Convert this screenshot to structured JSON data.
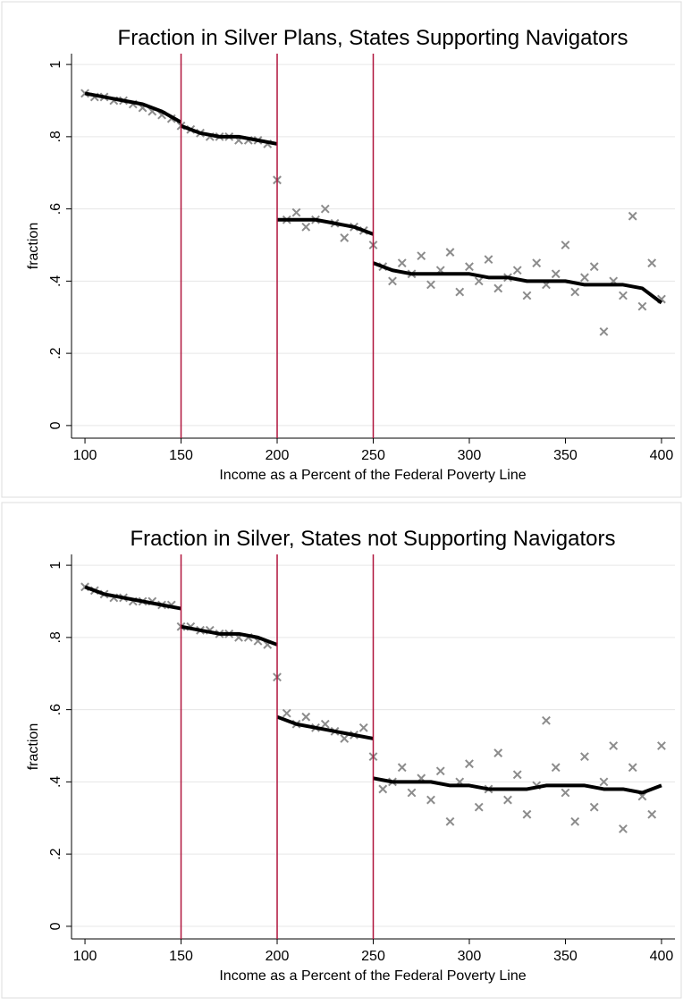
{
  "chart_data": [
    {
      "type": "scatter",
      "title": "Fraction in Silver Plans, States Supporting Navigators",
      "x_label": "Income as a Percent of the Federal Poverty Line",
      "y_label": "fraction",
      "xlim": [
        93,
        407
      ],
      "ylim": [
        -0.035,
        1.03
      ],
      "xticks": [
        100,
        150,
        200,
        250,
        300,
        350,
        400
      ],
      "yticks": [
        0,
        {
          "value": 0.2,
          "label": ".2"
        },
        {
          "value": 0.4,
          "label": ".4"
        },
        {
          "value": 0.6,
          "label": ".6"
        },
        {
          "value": 0.8,
          "label": ".8"
        },
        1
      ],
      "grid": true,
      "scatter": {
        "color": "#8c8c8c",
        "x": [
          100,
          105,
          110,
          115,
          120,
          125,
          130,
          135,
          140,
          145,
          150,
          155,
          160,
          165,
          170,
          175,
          180,
          185,
          190,
          195,
          200,
          205,
          210,
          215,
          220,
          225,
          230,
          235,
          240,
          245,
          250,
          255,
          260,
          265,
          270,
          275,
          280,
          285,
          290,
          295,
          300,
          305,
          310,
          315,
          320,
          325,
          330,
          335,
          340,
          345,
          350,
          355,
          360,
          365,
          370,
          375,
          380,
          385,
          390,
          395,
          400
        ],
        "values": [
          0.92,
          0.91,
          0.91,
          0.9,
          0.9,
          0.89,
          0.88,
          0.87,
          0.86,
          0.85,
          0.83,
          0.82,
          0.81,
          0.8,
          0.8,
          0.8,
          0.79,
          0.79,
          0.79,
          0.78,
          0.68,
          0.57,
          0.59,
          0.55,
          0.57,
          0.6,
          0.56,
          0.52,
          0.55,
          0.54,
          0.5,
          0.44,
          0.4,
          0.45,
          0.42,
          0.47,
          0.39,
          0.43,
          0.48,
          0.37,
          0.44,
          0.4,
          0.46,
          0.38,
          0.41,
          0.43,
          0.36,
          0.45,
          0.39,
          0.42,
          0.5,
          0.37,
          0.41,
          0.44,
          0.26,
          0.4,
          0.36,
          0.58,
          0.33,
          0.45,
          0.35
        ]
      },
      "fit": {
        "color": "#000000",
        "x": [
          100,
          110,
          120,
          130,
          140,
          150,
          150,
          150,
          160,
          170,
          180,
          190,
          200,
          200,
          200,
          210,
          220,
          230,
          240,
          250,
          250,
          250,
          260,
          270,
          280,
          290,
          300,
          310,
          320,
          330,
          340,
          350,
          360,
          370,
          380,
          390,
          400
        ],
        "values": [
          0.92,
          0.91,
          0.9,
          0.89,
          0.87,
          0.84,
          null,
          0.83,
          0.81,
          0.8,
          0.8,
          0.79,
          0.78,
          null,
          0.57,
          0.57,
          0.57,
          0.56,
          0.55,
          0.53,
          null,
          0.45,
          0.43,
          0.42,
          0.42,
          0.42,
          0.42,
          0.41,
          0.41,
          0.4,
          0.4,
          0.4,
          0.39,
          0.39,
          0.39,
          0.38,
          0.34
        ]
      },
      "vlines": {
        "color": "#b0143c",
        "values": [
          150,
          200,
          250
        ]
      }
    },
    {
      "type": "scatter",
      "title": "Fraction in Silver, States not Supporting Navigators",
      "x_label": "Income as a Percent of the Federal Poverty Line",
      "y_label": "fraction",
      "xlim": [
        93,
        407
      ],
      "ylim": [
        -0.035,
        1.03
      ],
      "xticks": [
        100,
        150,
        200,
        250,
        300,
        350,
        400
      ],
      "yticks": [
        0,
        {
          "value": 0.2,
          "label": ".2"
        },
        {
          "value": 0.4,
          "label": ".4"
        },
        {
          "value": 0.6,
          "label": ".6"
        },
        {
          "value": 0.8,
          "label": ".8"
        },
        1
      ],
      "grid": true,
      "scatter": {
        "color": "#8c8c8c",
        "x": [
          100,
          105,
          110,
          115,
          120,
          125,
          130,
          135,
          140,
          145,
          150,
          155,
          160,
          165,
          170,
          175,
          180,
          185,
          190,
          195,
          200,
          205,
          210,
          215,
          220,
          225,
          230,
          235,
          240,
          245,
          250,
          255,
          260,
          265,
          270,
          275,
          280,
          285,
          290,
          295,
          300,
          305,
          310,
          315,
          320,
          325,
          330,
          335,
          340,
          345,
          350,
          355,
          360,
          365,
          370,
          375,
          380,
          385,
          390,
          395,
          400
        ],
        "values": [
          0.94,
          0.93,
          0.92,
          0.91,
          0.91,
          0.9,
          0.9,
          0.9,
          0.89,
          0.89,
          0.83,
          0.83,
          0.82,
          0.82,
          0.81,
          0.81,
          0.8,
          0.8,
          0.79,
          0.78,
          0.69,
          0.59,
          0.56,
          0.58,
          0.55,
          0.56,
          0.54,
          0.52,
          0.53,
          0.55,
          0.47,
          0.38,
          0.4,
          0.44,
          0.37,
          0.41,
          0.35,
          0.43,
          0.29,
          0.4,
          0.45,
          0.33,
          0.38,
          0.48,
          0.35,
          0.42,
          0.31,
          0.39,
          0.57,
          0.44,
          0.37,
          0.29,
          0.47,
          0.33,
          0.4,
          0.5,
          0.27,
          0.44,
          0.36,
          0.31,
          0.5
        ]
      },
      "fit": {
        "color": "#000000",
        "x": [
          100,
          110,
          120,
          130,
          140,
          150,
          150,
          150,
          160,
          170,
          180,
          190,
          200,
          200,
          200,
          210,
          220,
          230,
          240,
          250,
          250,
          250,
          260,
          270,
          280,
          290,
          300,
          310,
          320,
          330,
          340,
          350,
          360,
          370,
          380,
          390,
          400
        ],
        "values": [
          0.94,
          0.92,
          0.91,
          0.9,
          0.89,
          0.88,
          null,
          0.83,
          0.82,
          0.81,
          0.81,
          0.8,
          0.78,
          null,
          0.58,
          0.56,
          0.55,
          0.54,
          0.53,
          0.52,
          null,
          0.41,
          0.4,
          0.4,
          0.4,
          0.39,
          0.39,
          0.38,
          0.38,
          0.38,
          0.39,
          0.39,
          0.39,
          0.38,
          0.38,
          0.37,
          0.39
        ]
      },
      "vlines": {
        "color": "#b0143c",
        "values": [
          150,
          200,
          250
        ]
      }
    }
  ]
}
